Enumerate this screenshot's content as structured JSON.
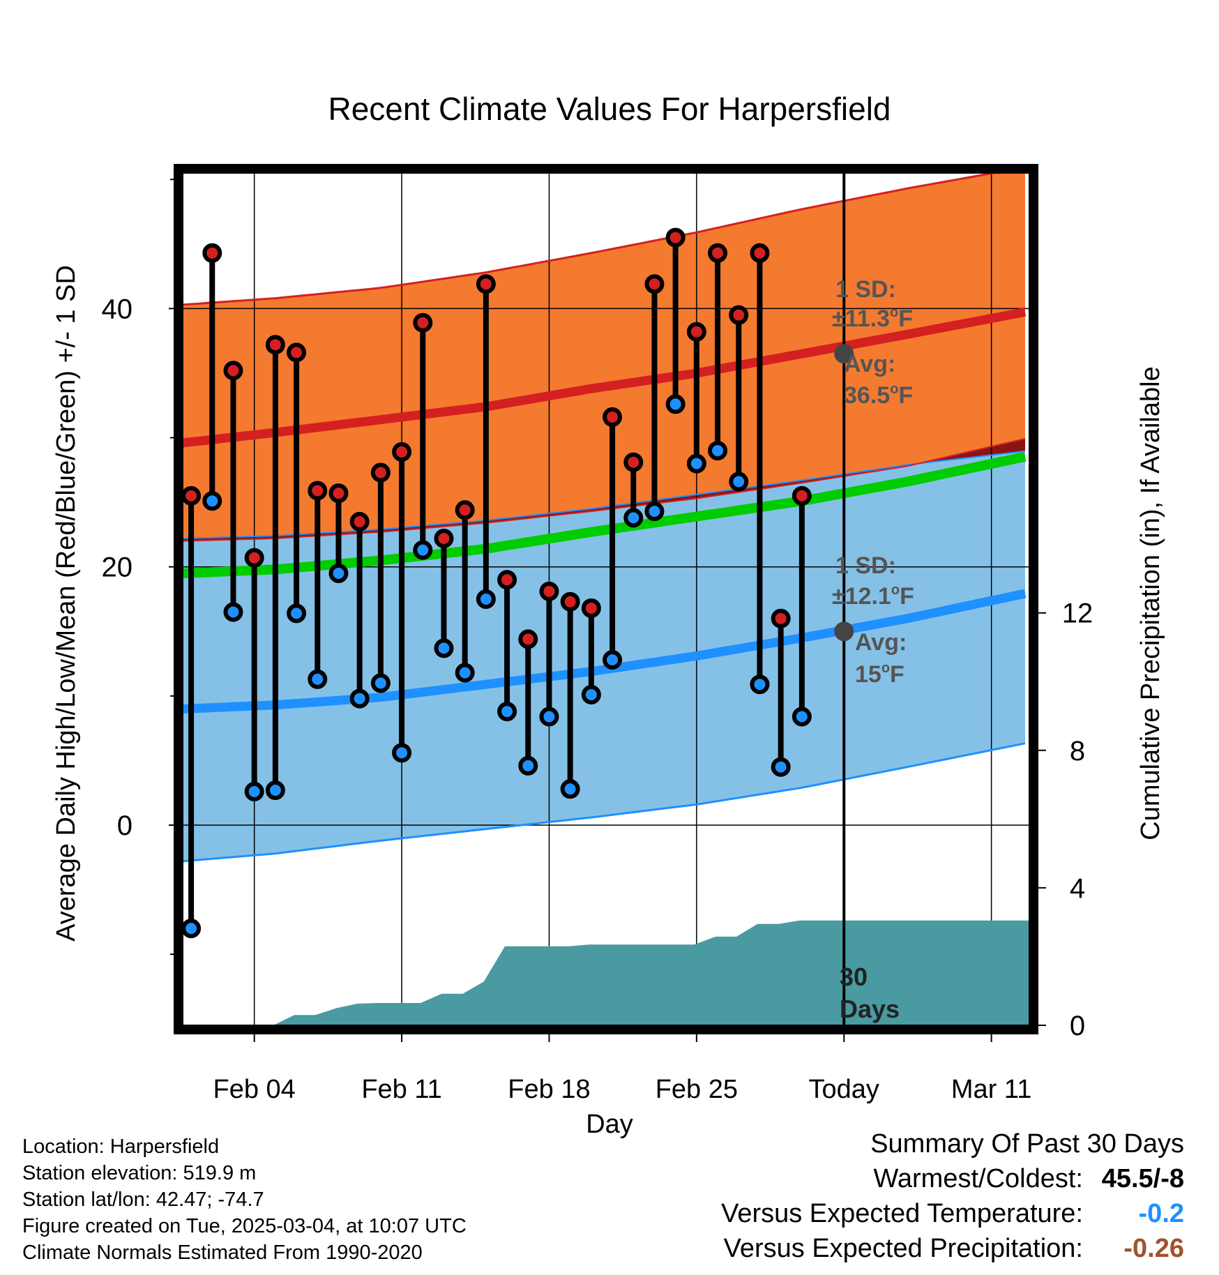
{
  "chart_data": {
    "type": "line",
    "title": "Recent Climate Values For Harpersfield",
    "xlabel": "Day",
    "ylabel": "Average Daily High/Low/Mean (Red/Blue/Green) +/- 1 SD",
    "y2label": "Cumulative Precipitation (in), If Available",
    "x_tick_labels": [
      "Feb 04",
      "Feb 11",
      "Feb 18",
      "Feb 25",
      "Today",
      "Mar 11"
    ],
    "x_tick_days": [
      4,
      11,
      18,
      25,
      32,
      39
    ],
    "xlim": [
      0.6,
      40.8
    ],
    "ylim": [
      -15.5,
      50.5
    ],
    "y_ticks": [
      0,
      20,
      40
    ],
    "y_minor_ticks": [
      -10,
      10,
      30,
      50
    ],
    "y2lim": [
      0,
      24.8
    ],
    "y2_ticks": [
      0,
      4,
      8,
      12
    ],
    "grid": true,
    "today_day": 32,
    "days": [
      1,
      2,
      3,
      4,
      5,
      6,
      7,
      8,
      9,
      10,
      11,
      12,
      13,
      14,
      15,
      16,
      17,
      18,
      19,
      20,
      21,
      22,
      23,
      24,
      25,
      26,
      27,
      28,
      29,
      30
    ],
    "highs": [
      25.5,
      44.3,
      35.2,
      20.7,
      37.2,
      36.6,
      25.9,
      25.7,
      23.5,
      27.3,
      28.9,
      38.9,
      22.2,
      24.4,
      41.9,
      19.0,
      14.4,
      18.1,
      17.3,
      16.8,
      31.6,
      28.1,
      41.9,
      45.5,
      38.2,
      44.3,
      39.5,
      44.3,
      16.0,
      25.5
    ],
    "lows": [
      -8.0,
      25.1,
      16.5,
      2.6,
      2.7,
      16.4,
      11.3,
      19.5,
      9.8,
      11.0,
      5.6,
      21.3,
      13.7,
      11.8,
      17.5,
      8.8,
      4.6,
      8.4,
      2.8,
      10.1,
      12.8,
      23.8,
      24.3,
      32.6,
      28.0,
      29.0,
      26.6,
      10.9,
      4.5,
      8.4
    ],
    "series": [
      {
        "name": "Normal high",
        "color": "#d42020",
        "day": [
          0.6,
          5,
          10,
          15,
          20,
          25,
          30,
          35,
          40.8
        ],
        "values": [
          29.6,
          30.4,
          31.4,
          32.4,
          33.8,
          35.0,
          36.5,
          38.0,
          39.8
        ]
      },
      {
        "name": "Normal high +1 SD",
        "color": "#d42020",
        "day": [
          0.6,
          5,
          10,
          15,
          20,
          25,
          30,
          35,
          40.8
        ],
        "values": [
          40.3,
          40.8,
          41.6,
          42.8,
          44.3,
          45.9,
          47.7,
          49.3,
          51.0
        ]
      },
      {
        "name": "Normal high -1 SD",
        "color": "#d42020",
        "day": [
          0.6,
          5,
          10,
          15,
          20,
          25,
          30,
          35,
          40.8
        ],
        "values": [
          22.0,
          22.2,
          22.7,
          23.4,
          24.3,
          25.3,
          26.5,
          27.8,
          30.0
        ]
      },
      {
        "name": "Normal low",
        "color": "#1e90ff",
        "day": [
          0.6,
          5,
          10,
          15,
          20,
          25,
          30,
          35,
          40.8
        ],
        "values": [
          9.0,
          9.3,
          9.9,
          10.9,
          11.9,
          13.1,
          14.5,
          16.0,
          18.0
        ]
      },
      {
        "name": "Normal low +1 SD",
        "color": "#1e90ff",
        "day": [
          0.6,
          5,
          10,
          15,
          20,
          25,
          30,
          35,
          40.8
        ],
        "values": [
          22.2,
          22.4,
          22.9,
          23.6,
          24.5,
          25.6,
          26.7,
          27.9,
          29.0
        ]
      },
      {
        "name": "Normal low -1 SD",
        "color": "#1e90ff",
        "day": [
          0.6,
          5,
          10,
          15,
          20,
          25,
          30,
          35,
          40.8
        ],
        "values": [
          -2.8,
          -2.2,
          -1.2,
          -0.3,
          0.6,
          1.6,
          2.9,
          4.5,
          6.4
        ]
      },
      {
        "name": "Normal mean",
        "color": "#00cc00",
        "day": [
          0.6,
          5,
          10,
          15,
          20,
          25,
          30,
          35,
          40.8
        ],
        "values": [
          19.5,
          19.8,
          20.5,
          21.4,
          22.7,
          23.9,
          25.1,
          26.6,
          28.6
        ]
      }
    ],
    "precip_cumulative": {
      "name": "Cumulative precipitation",
      "color": "#4a9aa2",
      "day": [
        0.6,
        4.9,
        5.9,
        6.9,
        7.9,
        8.9,
        9.9,
        10.9,
        11.9,
        12.9,
        13.9,
        14.9,
        15.9,
        16.9,
        17.9,
        18.9,
        19.9,
        20.9,
        21.9,
        22.9,
        23.9,
        24.9,
        25.9,
        26.9,
        27.9,
        28.9,
        29.9,
        30.9,
        31.9,
        40.8
      ],
      "values": [
        0,
        0,
        0.3,
        0.3,
        0.5,
        0.63,
        0.65,
        0.65,
        0.65,
        0.92,
        0.92,
        1.27,
        2.3,
        2.3,
        2.3,
        2.3,
        2.35,
        2.35,
        2.35,
        2.35,
        2.35,
        2.35,
        2.58,
        2.58,
        2.95,
        2.95,
        3.05,
        3.05,
        3.05,
        3.05
      ]
    },
    "annotations": {
      "high_sd_label_1": "1 SD:",
      "high_sd_label_2": "±11.3",
      "high_avg_label_1": "Avg:",
      "high_avg_label_2": "36.5",
      "high_avg_value": 36.5,
      "low_sd_label_1": "1 SD:",
      "low_sd_label_2": "±12.1",
      "low_avg_label_1": "Avg:",
      "low_avg_label_2": "15",
      "low_avg_value": 15,
      "degree_unit": "F",
      "degree_sup": "o",
      "window_label_1": "30",
      "window_label_2": "Days"
    },
    "colors": {
      "high_band": "#f47a30",
      "low_band": "#85c1e7",
      "overlap_band": "#8b1414",
      "high_line": "#d42020",
      "low_line": "#1e90ff",
      "mean_line": "#00cc00",
      "high_dot": "#d42020",
      "low_dot": "#1e90ff",
      "annotation": "#555555",
      "today_dot": "#444444"
    }
  },
  "info": {
    "location": "Location: Harpersfield",
    "elevation": "Station elevation: 519.9 m",
    "latlon": "Station lat/lon: 42.47; -74.7",
    "created": "Figure created on Tue, 2025-03-04, at 10:07 UTC",
    "normals": "Climate Normals Estimated From 1990-2020"
  },
  "summary": {
    "title": "Summary Of Past 30 Days",
    "warmest_label": "Warmest/Coldest:",
    "warmest_value": "45.5/-8",
    "temp_label": "Versus Expected Temperature:",
    "temp_value": "-0.2",
    "temp_color": "#1e90ff",
    "precip_label": "Versus Expected Precipitation:",
    "precip_value": "-0.26",
    "precip_color": "#a0522d"
  }
}
